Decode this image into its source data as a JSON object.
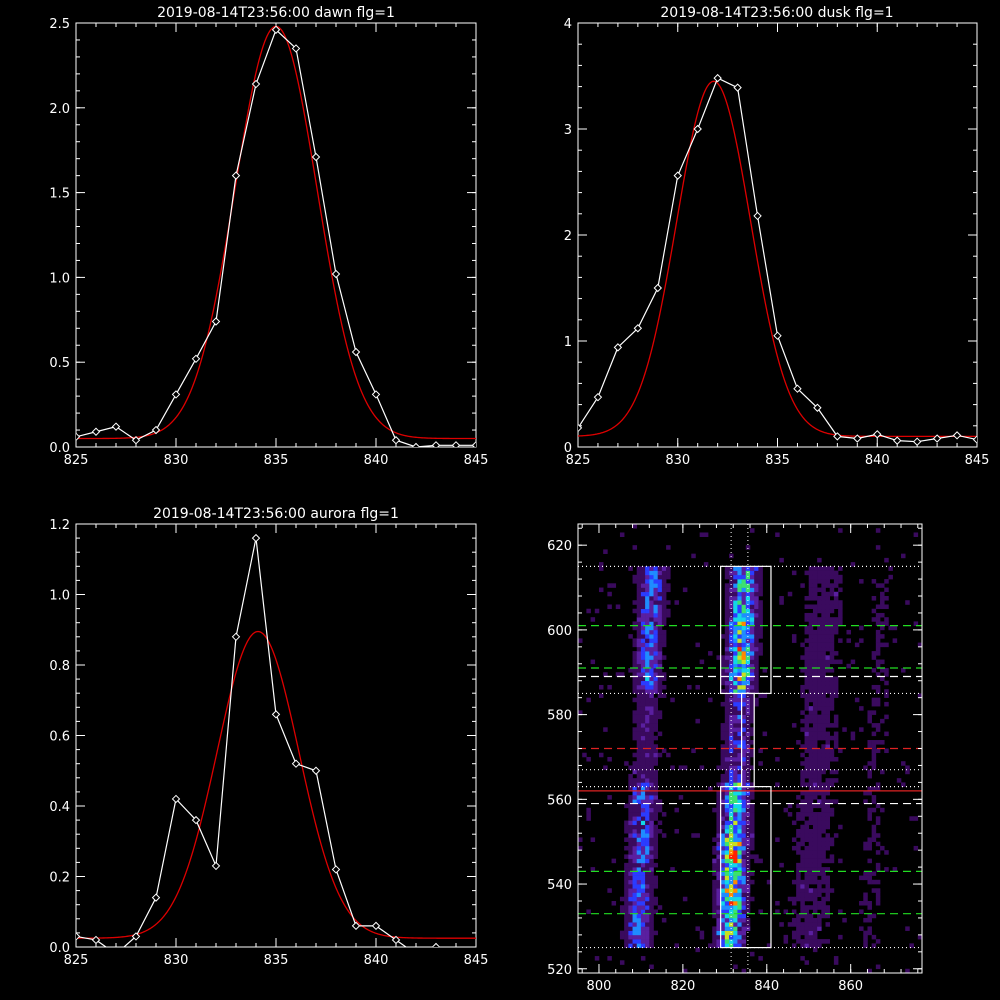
{
  "chart_data": [
    {
      "type": "line",
      "title": "2019-08-14T23:56:00 dawn flg=1",
      "xlim": [
        825,
        845
      ],
      "ylim": [
        0,
        2.5
      ],
      "xticks": [
        825,
        830,
        835,
        840,
        845
      ],
      "xtick_labels": [
        "825",
        "830",
        "835",
        "840",
        "845"
      ],
      "yticks": [
        0,
        0.5,
        1.0,
        1.5,
        2.0,
        2.5
      ],
      "ytick_labels": [
        "0.0",
        "0.5",
        "1.0",
        "1.5",
        "2.0",
        "2.5"
      ],
      "series": [
        {
          "color": "#ffffff",
          "marker": "diamond",
          "x": [
            825,
            826,
            827,
            828,
            829,
            830,
            831,
            832,
            833,
            834,
            835,
            836,
            837,
            838,
            839,
            840,
            841,
            842,
            843,
            844,
            845
          ],
          "y": [
            0.06,
            0.09,
            0.12,
            0.04,
            0.1,
            0.31,
            0.52,
            0.74,
            1.6,
            2.14,
            2.46,
            2.35,
            1.71,
            1.02,
            0.56,
            0.31,
            0.04,
            0.0,
            0.01,
            0.01,
            0.01
          ]
        },
        {
          "color": "#dd0000",
          "fit": "gaussian",
          "peak": 2.43,
          "center": 835.0,
          "sigma": 2.05,
          "offset": 0.05
        }
      ]
    },
    {
      "type": "line",
      "title": "2019-08-14T23:56:00 dusk flg=1",
      "xlim": [
        825,
        845
      ],
      "ylim": [
        0,
        4
      ],
      "xticks": [
        825,
        830,
        835,
        840,
        845
      ],
      "xtick_labels": [
        "825",
        "830",
        "835",
        "840",
        "845"
      ],
      "yticks": [
        0,
        1,
        2,
        3,
        4
      ],
      "ytick_labels": [
        "0",
        "1",
        "2",
        "3",
        "4"
      ],
      "series": [
        {
          "color": "#ffffff",
          "marker": "diamond",
          "x": [
            825,
            826,
            827,
            828,
            829,
            830,
            831,
            832,
            833,
            834,
            835,
            836,
            837,
            838,
            839,
            840,
            841,
            842,
            843,
            844,
            845
          ],
          "y": [
            0.18,
            0.47,
            0.94,
            1.12,
            1.5,
            2.56,
            3.0,
            3.48,
            3.39,
            2.18,
            1.05,
            0.55,
            0.37,
            0.1,
            0.08,
            0.12,
            0.06,
            0.05,
            0.08,
            0.11,
            0.07
          ]
        },
        {
          "color": "#dd0000",
          "fit": "gaussian",
          "peak": 3.35,
          "center": 831.8,
          "sigma": 1.85,
          "offset": 0.1
        }
      ]
    },
    {
      "type": "line",
      "title": "2019-08-14T23:56:00 aurora flg=1",
      "xlim": [
        825,
        845
      ],
      "ylim": [
        0,
        1.2
      ],
      "xticks": [
        825,
        830,
        835,
        840,
        845
      ],
      "xtick_labels": [
        "825",
        "830",
        "835",
        "840",
        "845"
      ],
      "yticks": [
        0,
        0.2,
        0.4,
        0.6,
        0.8,
        1.0,
        1.2
      ],
      "ytick_labels": [
        "0.0",
        "0.2",
        "0.4",
        "0.6",
        "0.8",
        "1.0",
        "1.2"
      ],
      "series": [
        {
          "color": "#ffffff",
          "marker": "diamond",
          "x": [
            825,
            826,
            827,
            828,
            829,
            830,
            831,
            832,
            833,
            834,
            835,
            836,
            837,
            838,
            839,
            840,
            841,
            842,
            843,
            844,
            845
          ],
          "y": [
            0.03,
            0.02,
            -0.02,
            0.03,
            0.14,
            0.42,
            0.36,
            0.23,
            0.88,
            1.16,
            0.66,
            0.52,
            0.5,
            0.22,
            0.06,
            0.06,
            0.02,
            -0.02,
            0.0,
            -0.02,
            -0.02
          ]
        },
        {
          "color": "#dd0000",
          "fit": "gaussian",
          "peak": 0.87,
          "center": 834.1,
          "sigma": 2.05,
          "offset": 0.025
        }
      ]
    },
    {
      "type": "heatmap",
      "xlim": [
        795,
        877
      ],
      "ylim": [
        519,
        625
      ],
      "xticks": [
        800,
        820,
        840,
        860
      ],
      "xtick_labels": [
        "800",
        "820",
        "840",
        "860"
      ],
      "yticks": [
        520,
        540,
        560,
        580,
        600,
        620
      ],
      "ytick_labels": [
        "520",
        "540",
        "560",
        "580",
        "600",
        "620"
      ],
      "colormap": [
        "#000000",
        "#3a0a5e",
        "#5a1fa0",
        "#2b3cff",
        "#1f8cff",
        "#12d6e8",
        "#3ce070",
        "#c8e020",
        "#ff8800",
        "#ff2000"
      ],
      "bands": [
        {
          "center": 811,
          "width": 6,
          "ymin": 525,
          "ymax": 614,
          "strength": 0.55
        },
        {
          "center": 833,
          "width": 6,
          "ymin": 525,
          "ymax": 614,
          "strength": 0.85
        },
        {
          "center": 852,
          "width": 10,
          "ymin": 525,
          "ymax": 614,
          "strength": 0.18
        },
        {
          "center": 866,
          "width": 8,
          "ymin": 525,
          "ymax": 614,
          "strength": 0.1
        }
      ],
      "boxes": [
        {
          "x": [
            829,
            841
          ],
          "y": [
            585,
            615
          ],
          "color": "#ffffff"
        },
        {
          "x": [
            829,
            841
          ],
          "y": [
            525,
            563
          ],
          "color": "#ffffff"
        },
        {
          "x": [
            834,
            837
          ],
          "y": [
            563,
            585
          ],
          "color": "#ffffff"
        }
      ],
      "hlines": [
        {
          "y": 601,
          "color": "#22dd22",
          "style": "dashed"
        },
        {
          "y": 591,
          "color": "#22dd22",
          "style": "dashed"
        },
        {
          "y": 589,
          "color": "#ffffff",
          "style": "dashed"
        },
        {
          "y": 572,
          "color": "#dd2222",
          "style": "dashed"
        },
        {
          "y": 562,
          "color": "#dd2222",
          "style": "solid"
        },
        {
          "y": 559,
          "color": "#ffffff",
          "style": "dashed"
        },
        {
          "y": 543,
          "color": "#22dd22",
          "style": "dashed"
        },
        {
          "y": 533,
          "color": "#22dd22",
          "style": "dashed"
        },
        {
          "y": 615,
          "color": "#ffffff",
          "style": "dotted"
        },
        {
          "y": 585,
          "color": "#ffffff",
          "style": "dotted"
        },
        {
          "y": 567,
          "color": "#ffffff",
          "style": "dotted"
        },
        {
          "y": 563,
          "color": "#ffffff",
          "style": "dotted"
        },
        {
          "y": 525,
          "color": "#ffffff",
          "style": "dotted"
        }
      ],
      "vlines": [
        {
          "x": 831.5,
          "color": "#ffffff",
          "style": "dotted"
        },
        {
          "x": 835.5,
          "color": "#ffffff",
          "style": "dotted"
        }
      ]
    }
  ]
}
